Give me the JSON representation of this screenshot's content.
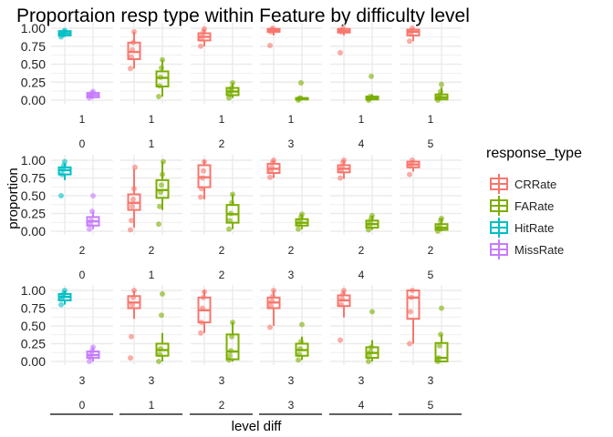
{
  "chart_data": {
    "type": "boxplot",
    "title": "Proportaion resp type within Feature by difficulty level",
    "xlabel": "level diff",
    "ylabel": "proportion",
    "ylim": [
      0,
      1
    ],
    "yticks": [
      "0.00",
      "0.25",
      "0.50",
      "0.75",
      "1.00"
    ],
    "grid": true,
    "legend": {
      "title": "response_type",
      "position": "right",
      "entries": [
        {
          "name": "CRRate",
          "color": "#F8766D"
        },
        {
          "name": "FARate",
          "color": "#7CAE00"
        },
        {
          "name": "HitRate",
          "color": "#00BFC4"
        },
        {
          "name": "MissRate",
          "color": "#C77CFF"
        }
      ]
    },
    "facet_rows": [
      "1",
      "2",
      "3"
    ],
    "facet_cols": [
      "0",
      "1",
      "2",
      "3",
      "4",
      "5"
    ],
    "panels": [
      {
        "row": "1",
        "col": "0",
        "series": [
          {
            "name": "HitRate",
            "q1": 0.9,
            "median": 0.93,
            "q3": 0.96,
            "lo": 0.88,
            "hi": 0.98,
            "points": [
              0.88,
              0.91,
              0.93,
              0.95,
              0.97
            ]
          },
          {
            "name": "MissRate",
            "q1": 0.04,
            "median": 0.07,
            "q3": 0.1,
            "lo": 0.02,
            "hi": 0.12,
            "points": [
              0.03,
              0.06,
              0.08,
              0.1,
              0.12
            ]
          }
        ]
      },
      {
        "row": "1",
        "col": "1",
        "series": [
          {
            "name": "CRRate",
            "q1": 0.57,
            "median": 0.67,
            "q3": 0.8,
            "lo": 0.44,
            "hi": 0.95,
            "points": [
              0.44,
              0.6,
              0.7,
              0.8,
              0.95
            ]
          },
          {
            "name": "FARate",
            "q1": 0.19,
            "median": 0.31,
            "q3": 0.4,
            "lo": 0.05,
            "hi": 0.56,
            "points": [
              0.05,
              0.2,
              0.32,
              0.45,
              0.56
            ]
          }
        ]
      },
      {
        "row": "1",
        "col": "2",
        "series": [
          {
            "name": "CRRate",
            "q1": 0.83,
            "median": 0.88,
            "q3": 0.93,
            "lo": 0.75,
            "hi": 0.99,
            "points": [
              0.75,
              0.85,
              0.9,
              0.95,
              0.99
            ]
          },
          {
            "name": "FARate",
            "q1": 0.07,
            "median": 0.12,
            "q3": 0.17,
            "lo": 0.03,
            "hi": 0.24,
            "points": [
              0.03,
              0.08,
              0.13,
              0.17,
              0.24
            ]
          }
        ]
      },
      {
        "row": "1",
        "col": "3",
        "series": [
          {
            "name": "CRRate",
            "q1": 0.95,
            "median": 0.97,
            "q3": 0.99,
            "lo": 0.9,
            "hi": 1.0,
            "points": [
              0.76,
              0.95,
              0.98,
              1.0
            ]
          },
          {
            "name": "FARate",
            "q1": 0.01,
            "median": 0.02,
            "q3": 0.03,
            "lo": 0.0,
            "hi": 0.05,
            "points": [
              0.0,
              0.02,
              0.03,
              0.24
            ]
          }
        ]
      },
      {
        "row": "1",
        "col": "4",
        "series": [
          {
            "name": "CRRate",
            "q1": 0.94,
            "median": 0.96,
            "q3": 0.99,
            "lo": 0.9,
            "hi": 1.0,
            "points": [
              0.66,
              0.95,
              0.97,
              1.0
            ]
          },
          {
            "name": "FARate",
            "q1": 0.01,
            "median": 0.03,
            "q3": 0.05,
            "lo": 0.0,
            "hi": 0.08,
            "points": [
              0.0,
              0.02,
              0.05,
              0.33
            ]
          }
        ]
      },
      {
        "row": "1",
        "col": "5",
        "series": [
          {
            "name": "CRRate",
            "q1": 0.9,
            "median": 0.95,
            "q3": 0.98,
            "lo": 0.82,
            "hi": 1.0,
            "points": [
              0.82,
              0.92,
              0.96,
              1.0
            ]
          },
          {
            "name": "FARate",
            "q1": 0.01,
            "median": 0.04,
            "q3": 0.08,
            "lo": 0.0,
            "hi": 0.18,
            "points": [
              0.0,
              0.03,
              0.07,
              0.12,
              0.22
            ]
          }
        ]
      },
      {
        "row": "2",
        "col": "0",
        "series": [
          {
            "name": "HitRate",
            "q1": 0.8,
            "median": 0.86,
            "q3": 0.9,
            "lo": 0.72,
            "hi": 0.96,
            "points": [
              0.5,
              0.8,
              0.87,
              0.93,
              0.98
            ]
          },
          {
            "name": "MissRate",
            "q1": 0.08,
            "median": 0.14,
            "q3": 0.2,
            "lo": 0.03,
            "hi": 0.28,
            "points": [
              0.03,
              0.1,
              0.15,
              0.28,
              0.5
            ]
          }
        ]
      },
      {
        "row": "2",
        "col": "1",
        "series": [
          {
            "name": "CRRate",
            "q1": 0.3,
            "median": 0.4,
            "q3": 0.52,
            "lo": 0.05,
            "hi": 0.88,
            "points": [
              0.02,
              0.15,
              0.35,
              0.45,
              0.6,
              0.9
            ]
          },
          {
            "name": "FARate",
            "q1": 0.47,
            "median": 0.58,
            "q3": 0.72,
            "lo": 0.3,
            "hi": 0.98,
            "points": [
              0.1,
              0.35,
              0.55,
              0.65,
              0.8,
              0.98
            ]
          }
        ]
      },
      {
        "row": "2",
        "col": "2",
        "series": [
          {
            "name": "CRRate",
            "q1": 0.62,
            "median": 0.76,
            "q3": 0.93,
            "lo": 0.45,
            "hi": 1.0,
            "points": [
              0.48,
              0.6,
              0.75,
              0.85,
              0.98
            ]
          },
          {
            "name": "FARate",
            "q1": 0.12,
            "median": 0.24,
            "q3": 0.37,
            "lo": 0.03,
            "hi": 0.52,
            "points": [
              0.03,
              0.15,
              0.25,
              0.4,
              0.52
            ]
          }
        ]
      },
      {
        "row": "2",
        "col": "3",
        "series": [
          {
            "name": "CRRate",
            "q1": 0.82,
            "median": 0.88,
            "q3": 0.95,
            "lo": 0.75,
            "hi": 1.0,
            "points": [
              0.76,
              0.85,
              0.9,
              0.97,
              1.0
            ]
          },
          {
            "name": "FARate",
            "q1": 0.08,
            "median": 0.12,
            "q3": 0.17,
            "lo": 0.03,
            "hi": 0.24,
            "points": [
              0.03,
              0.1,
              0.14,
              0.2,
              0.24
            ]
          }
        ]
      },
      {
        "row": "2",
        "col": "4",
        "series": [
          {
            "name": "CRRate",
            "q1": 0.83,
            "median": 0.88,
            "q3": 0.93,
            "lo": 0.74,
            "hi": 1.0,
            "points": [
              0.75,
              0.85,
              0.9,
              0.97,
              1.0
            ]
          },
          {
            "name": "FARate",
            "q1": 0.05,
            "median": 0.1,
            "q3": 0.15,
            "lo": 0.02,
            "hi": 0.22,
            "points": [
              0.02,
              0.08,
              0.12,
              0.18,
              0.22
            ]
          }
        ]
      },
      {
        "row": "2",
        "col": "5",
        "series": [
          {
            "name": "CRRate",
            "q1": 0.9,
            "median": 0.94,
            "q3": 0.98,
            "lo": 0.84,
            "hi": 1.0,
            "points": [
              0.8,
              0.92,
              0.96,
              1.0
            ]
          },
          {
            "name": "FARate",
            "q1": 0.02,
            "median": 0.05,
            "q3": 0.1,
            "lo": 0.0,
            "hi": 0.18,
            "points": [
              0.0,
              0.04,
              0.08,
              0.15,
              0.18
            ]
          }
        ]
      },
      {
        "row": "3",
        "col": "0",
        "series": [
          {
            "name": "HitRate",
            "q1": 0.86,
            "median": 0.91,
            "q3": 0.95,
            "lo": 0.8,
            "hi": 1.0,
            "points": [
              0.8,
              0.88,
              0.92,
              0.96,
              1.0
            ]
          },
          {
            "name": "MissRate",
            "q1": 0.05,
            "median": 0.09,
            "q3": 0.14,
            "lo": 0.0,
            "hi": 0.2,
            "points": [
              0.0,
              0.06,
              0.1,
              0.15,
              0.2
            ]
          }
        ]
      },
      {
        "row": "3",
        "col": "1",
        "series": [
          {
            "name": "CRRate",
            "q1": 0.75,
            "median": 0.83,
            "q3": 0.92,
            "lo": 0.6,
            "hi": 1.0,
            "points": [
              0.05,
              0.35,
              0.8,
              0.9,
              1.0
            ]
          },
          {
            "name": "FARate",
            "q1": 0.08,
            "median": 0.16,
            "q3": 0.25,
            "lo": 0.0,
            "hi": 0.4,
            "points": [
              0.0,
              0.1,
              0.18,
              0.65,
              0.95
            ]
          }
        ]
      },
      {
        "row": "3",
        "col": "2",
        "series": [
          {
            "name": "CRRate",
            "q1": 0.55,
            "median": 0.72,
            "q3": 0.9,
            "lo": 0.4,
            "hi": 1.0,
            "points": [
              0.4,
              0.55,
              0.75,
              0.9,
              0.98
            ]
          },
          {
            "name": "FARate",
            "q1": 0.03,
            "median": 0.14,
            "q3": 0.38,
            "lo": 0.0,
            "hi": 0.55,
            "points": [
              0.02,
              0.08,
              0.15,
              0.35,
              0.55
            ]
          }
        ]
      },
      {
        "row": "3",
        "col": "3",
        "series": [
          {
            "name": "CRRate",
            "q1": 0.75,
            "median": 0.83,
            "q3": 0.9,
            "lo": 0.5,
            "hi": 1.0,
            "points": [
              0.48,
              0.78,
              0.85,
              0.92,
              1.0
            ]
          },
          {
            "name": "FARate",
            "q1": 0.08,
            "median": 0.16,
            "q3": 0.25,
            "lo": 0.02,
            "hi": 0.35,
            "points": [
              0.02,
              0.1,
              0.18,
              0.28,
              0.52
            ]
          }
        ]
      },
      {
        "row": "3",
        "col": "4",
        "series": [
          {
            "name": "CRRate",
            "q1": 0.78,
            "median": 0.86,
            "q3": 0.93,
            "lo": 0.62,
            "hi": 1.0,
            "points": [
              0.3,
              0.8,
              0.88,
              0.95,
              1.0
            ]
          },
          {
            "name": "FARate",
            "q1": 0.05,
            "median": 0.12,
            "q3": 0.2,
            "lo": 0.0,
            "hi": 0.3,
            "points": [
              0.0,
              0.08,
              0.14,
              0.2,
              0.7
            ]
          }
        ]
      },
      {
        "row": "3",
        "col": "5",
        "series": [
          {
            "name": "CRRate",
            "q1": 0.6,
            "median": 0.9,
            "q3": 1.0,
            "lo": 0.25,
            "hi": 1.0,
            "points": [
              0.25,
              0.7,
              0.9,
              1.0
            ]
          },
          {
            "name": "FARate",
            "q1": 0.0,
            "median": 0.05,
            "q3": 0.26,
            "lo": 0.0,
            "hi": 0.38,
            "points": [
              0.0,
              0.05,
              0.22,
              0.38,
              0.75
            ]
          }
        ]
      }
    ]
  }
}
